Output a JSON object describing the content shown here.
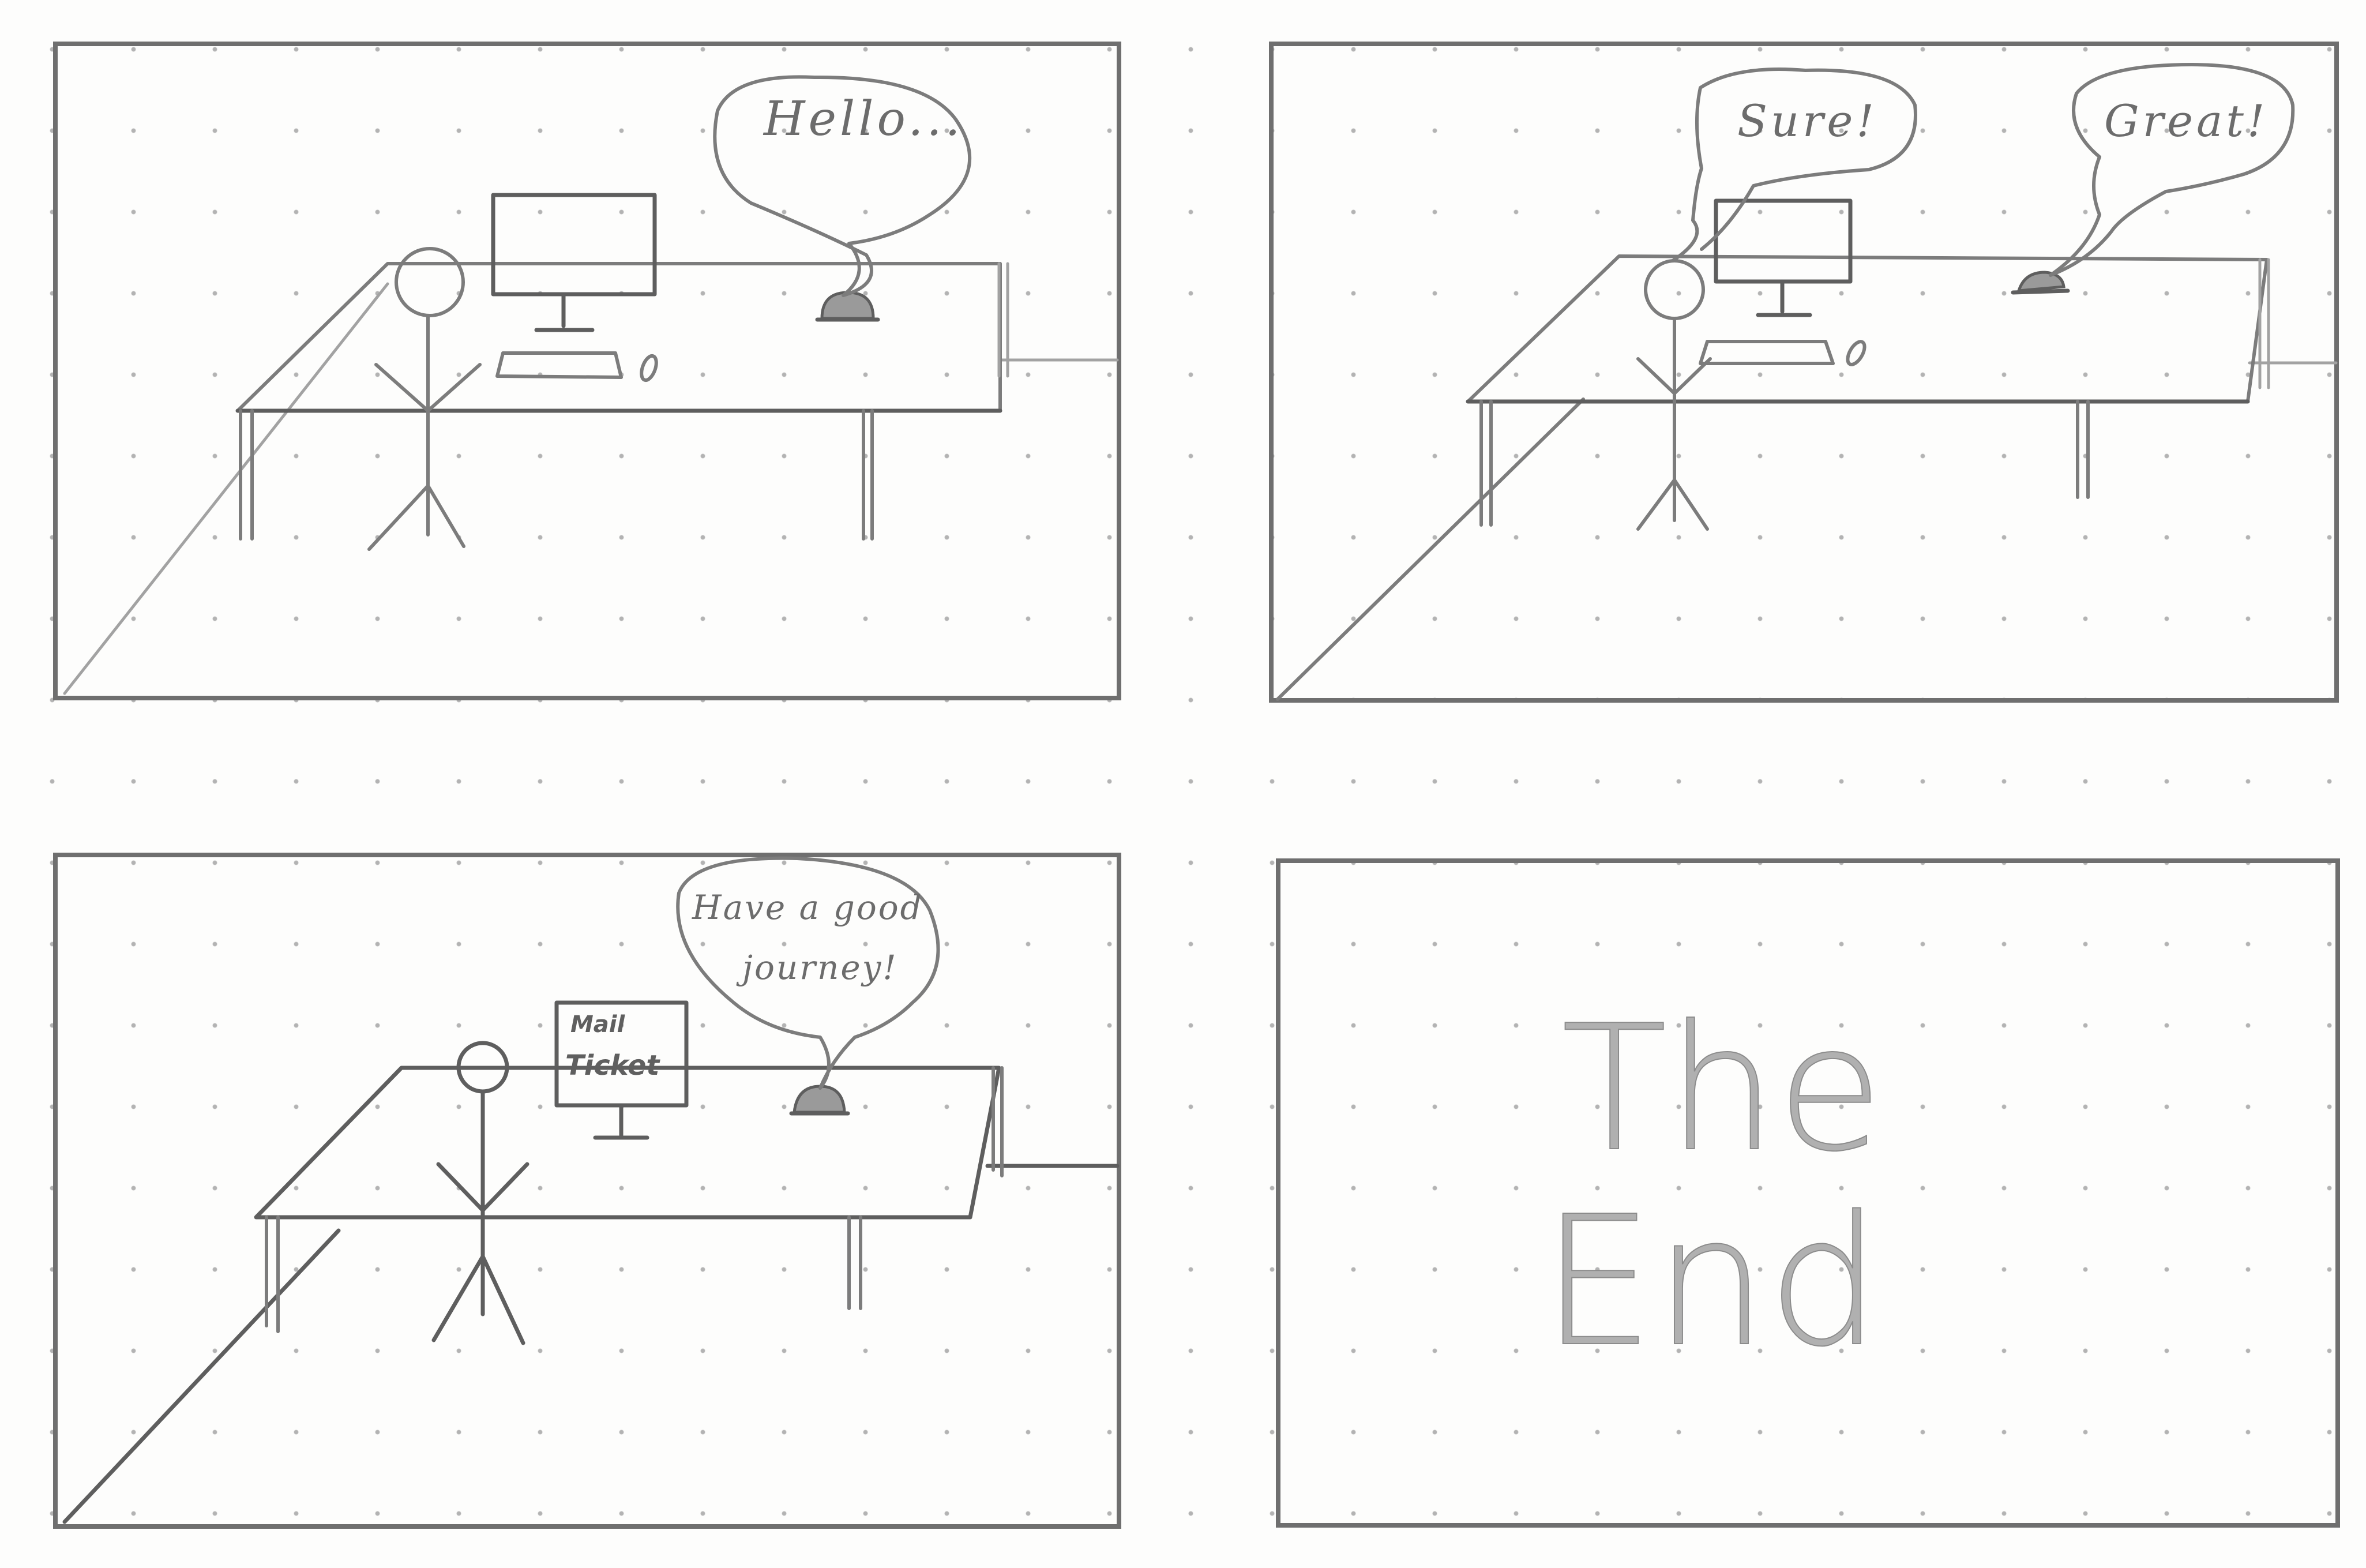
{
  "storyboard": {
    "panel_1": {
      "speech": "Hello..."
    },
    "panel_2": {
      "speech_person": "Sure!",
      "speech_bell": "Great!"
    },
    "panel_3": {
      "speech": "Have a good journey!",
      "speech_line_1": "Have a good",
      "speech_line_2": "journey!",
      "screen_line_1": "Mail",
      "screen_line_2": "Ticket"
    },
    "panel_4": {
      "end_line_1": "The",
      "end_line_2": "End"
    }
  },
  "colors": {
    "pencil": "#7c7c7c",
    "paper": "#fdfdfc",
    "grid_dot": "#b3b3b3"
  },
  "icons": [
    "stick-figure-icon",
    "desk-icon",
    "monitor-icon",
    "keyboard-icon",
    "mouse-icon",
    "service-bell-icon",
    "speech-bubble-icon"
  ]
}
